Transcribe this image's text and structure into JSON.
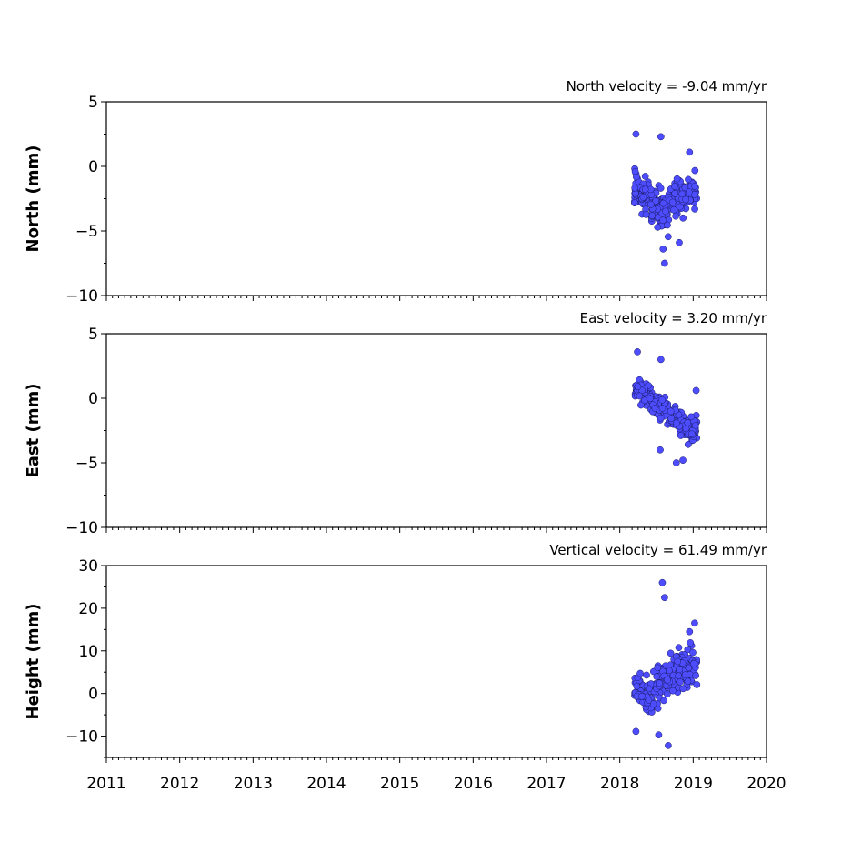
{
  "chart_data": [
    {
      "type": "scatter",
      "title": "North velocity = -9.04 mm/yr",
      "ylabel": "North (mm)",
      "xlim": [
        2011,
        2020
      ],
      "ylim": [
        -10,
        5
      ],
      "yticks": [
        5,
        0,
        -5,
        -10
      ],
      "ytick_labels": [
        "5",
        "0",
        "−5",
        "−10"
      ],
      "x_range_of_points": [
        2018.2,
        2019.05
      ],
      "y_level_by_time": [
        [
          2018.2,
          -1.5
        ],
        [
          2018.45,
          -3.0
        ],
        [
          2018.6,
          -3.5
        ],
        [
          2018.75,
          -2.5
        ],
        [
          2018.9,
          -2.0
        ],
        [
          2019.05,
          -2.0
        ]
      ],
      "y_spread": 1.4,
      "outliers": [
        [
          2018.22,
          2.5
        ],
        [
          2018.56,
          2.3
        ],
        [
          2018.95,
          1.1
        ],
        [
          2018.61,
          -7.5
        ],
        [
          2018.81,
          -5.9
        ],
        [
          2018.59,
          -6.4
        ]
      ]
    },
    {
      "type": "scatter",
      "title": "East velocity = 3.20 mm/yr",
      "ylabel": "East (mm)",
      "xlim": [
        2011,
        2020
      ],
      "ylim": [
        -10,
        5
      ],
      "yticks": [
        5,
        0,
        -5,
        -10
      ],
      "ytick_labels": [
        "5",
        "0",
        "−5",
        "−10"
      ],
      "x_range_of_points": [
        2018.2,
        2019.05
      ],
      "y_level_by_time": [
        [
          2018.2,
          0.8
        ],
        [
          2018.4,
          0.2
        ],
        [
          2018.6,
          -1.0
        ],
        [
          2018.8,
          -1.8
        ],
        [
          2018.95,
          -2.6
        ],
        [
          2019.05,
          -2.2
        ]
      ],
      "y_spread": 0.9,
      "outliers": [
        [
          2018.24,
          3.6
        ],
        [
          2018.56,
          3.0
        ],
        [
          2018.55,
          -4.0
        ],
        [
          2018.77,
          -5.0
        ],
        [
          2018.86,
          -4.8
        ],
        [
          2019.04,
          0.6
        ]
      ]
    },
    {
      "type": "scatter",
      "title": "Vertical velocity = 61.49 mm/yr",
      "ylabel": "Height (mm)",
      "xlim": [
        2011,
        2020
      ],
      "ylim": [
        -15,
        30
      ],
      "yticks": [
        30,
        20,
        10,
        0,
        -10
      ],
      "ytick_labels": [
        "30",
        "20",
        "10",
        "0",
        "−10"
      ],
      "x_range_of_points": [
        2018.2,
        2019.05
      ],
      "y_level_by_time": [
        [
          2018.2,
          1.0
        ],
        [
          2018.4,
          0.0
        ],
        [
          2018.6,
          3.5
        ],
        [
          2018.8,
          5.5
        ],
        [
          2018.95,
          6.0
        ],
        [
          2019.05,
          7.0
        ]
      ],
      "y_spread": 4.0,
      "outliers": [
        [
          2018.58,
          26.0
        ],
        [
          2018.61,
          22.5
        ],
        [
          2018.95,
          14.5
        ],
        [
          2019.02,
          16.5
        ],
        [
          2018.66,
          -12.2
        ],
        [
          2018.53,
          -9.7
        ],
        [
          2018.22,
          -8.9
        ]
      ]
    }
  ],
  "x_axis": {
    "ticks": [
      2011,
      2012,
      2013,
      2014,
      2015,
      2016,
      2017,
      2018,
      2019,
      2020
    ],
    "tick_labels": [
      "2011",
      "2012",
      "2013",
      "2014",
      "2015",
      "2016",
      "2017",
      "2018",
      "2019",
      "2020"
    ]
  },
  "marker_color": "#4d4dff",
  "marker_edge_color": "#1a1a66"
}
